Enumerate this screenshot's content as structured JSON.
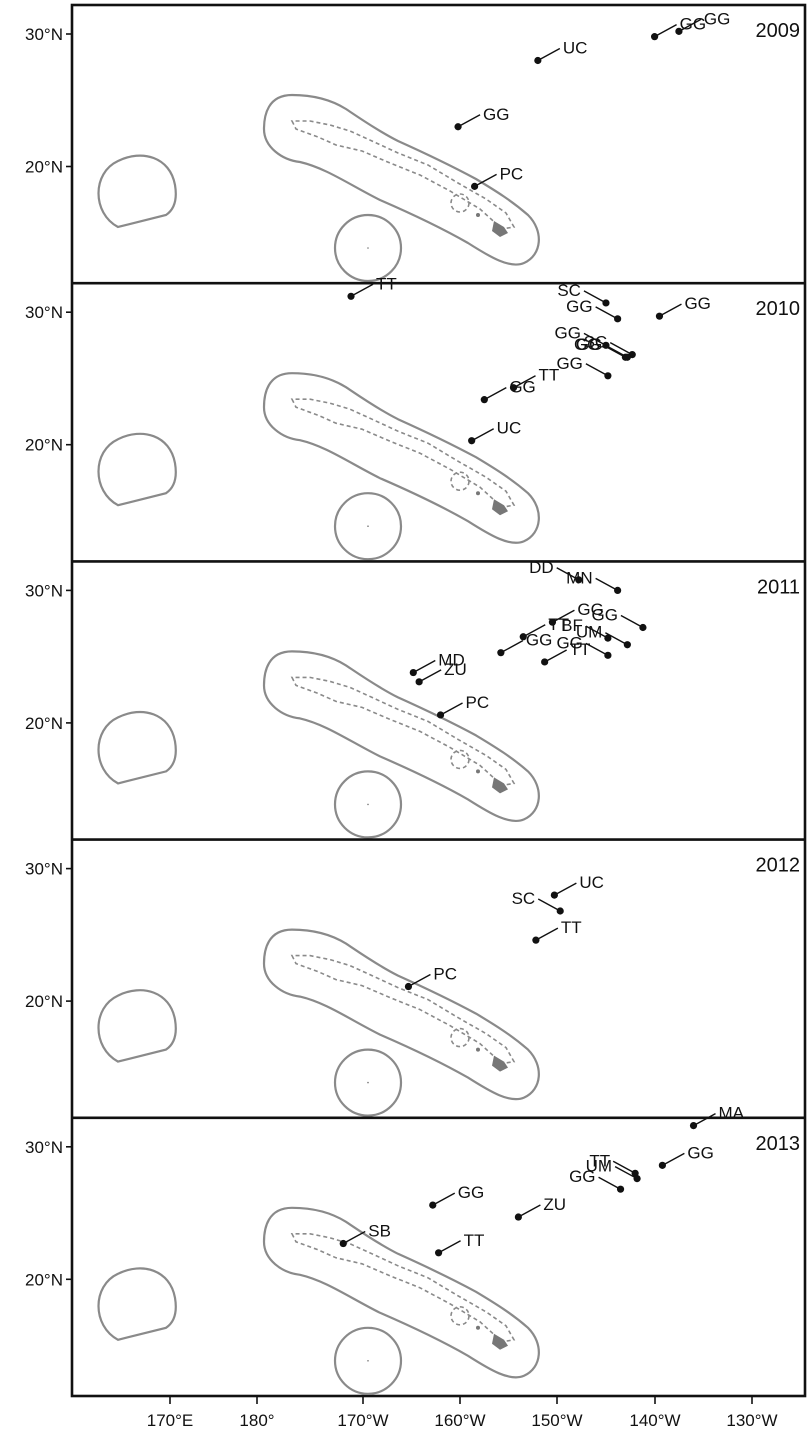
{
  "map": {
    "x_axis": {
      "tick_labels": [
        "170°E",
        "180°",
        "170°W",
        "160°W",
        "150°W",
        "140°W",
        "130°W"
      ]
    },
    "y_axis": {
      "tick_labels": [
        "30°N",
        "20°N"
      ]
    },
    "colors": {
      "frame": "#111111",
      "boundary": "#8a8a8a",
      "island": "#777777",
      "point": "#111111"
    },
    "panels": [
      {
        "year": "2009",
        "points": [
          {
            "label": "UC",
            "lon": -152,
            "lat": 28.0
          },
          {
            "label": "GG",
            "lon": -140,
            "lat": 29.8
          },
          {
            "label": "GG",
            "lon": -137.5,
            "lat": 30.2
          },
          {
            "label": "GG",
            "lon": -160.2,
            "lat": 23.0
          },
          {
            "label": "PC",
            "lon": -158.5,
            "lat": 18.5
          }
        ]
      },
      {
        "year": "2010",
        "points": [
          {
            "label": "TT",
            "lon": -171.2,
            "lat": 31.2
          },
          {
            "label": "SC",
            "lon": -145,
            "lat": 30.7
          },
          {
            "label": "GG",
            "lon": -143.8,
            "lat": 29.5
          },
          {
            "label": "GG",
            "lon": -139.5,
            "lat": 29.7
          },
          {
            "label": "GG",
            "lon": -145,
            "lat": 27.5
          },
          {
            "label": "GG",
            "lon": -143,
            "lat": 26.6
          },
          {
            "label": "SC",
            "lon": -142.3,
            "lat": 26.8
          },
          {
            "label": "GG",
            "lon": -142.8,
            "lat": 26.6
          },
          {
            "label": "GG",
            "lon": -144.8,
            "lat": 25.2
          },
          {
            "label": "GG",
            "lon": -157.5,
            "lat": 23.4
          },
          {
            "label": "TT",
            "lon": -154.5,
            "lat": 24.3
          },
          {
            "label": "UC",
            "lon": -158.8,
            "lat": 20.3
          }
        ]
      },
      {
        "year": "2011",
        "points": [
          {
            "label": "DD",
            "lon": -147.8,
            "lat": 30.8
          },
          {
            "label": "MN",
            "lon": -143.8,
            "lat": 30.0
          },
          {
            "label": "TT",
            "lon": -153.5,
            "lat": 26.5
          },
          {
            "label": "GG",
            "lon": -150.5,
            "lat": 27.6
          },
          {
            "label": "GG",
            "lon": -141.2,
            "lat": 27.2
          },
          {
            "label": "BF",
            "lon": -144.8,
            "lat": 26.4
          },
          {
            "label": "UM",
            "lon": -142.8,
            "lat": 25.9
          },
          {
            "label": "GG",
            "lon": -144.8,
            "lat": 25.1
          },
          {
            "label": "GG",
            "lon": -155.8,
            "lat": 25.3
          },
          {
            "label": "TT",
            "lon": -151.3,
            "lat": 24.6
          },
          {
            "label": "MD",
            "lon": -164.8,
            "lat": 23.8
          },
          {
            "label": "ZU",
            "lon": -164.2,
            "lat": 23.1
          },
          {
            "label": "PC",
            "lon": -162.0,
            "lat": 20.6
          }
        ]
      },
      {
        "year": "2012",
        "points": [
          {
            "label": "UC",
            "lon": -150.3,
            "lat": 28.0
          },
          {
            "label": "SC",
            "lon": -149.7,
            "lat": 26.8
          },
          {
            "label": "TT",
            "lon": -152.2,
            "lat": 24.6
          },
          {
            "label": "PC",
            "lon": -165.3,
            "lat": 21.1
          }
        ]
      },
      {
        "year": "2013",
        "points": [
          {
            "label": "MA",
            "lon": -136.0,
            "lat": 31.6
          },
          {
            "label": "TT",
            "lon": -142.0,
            "lat": 28.0
          },
          {
            "label": "UM",
            "lon": -141.8,
            "lat": 27.6
          },
          {
            "label": "GG",
            "lon": -139.2,
            "lat": 28.6
          },
          {
            "label": "GG",
            "lon": -143.5,
            "lat": 26.8
          },
          {
            "label": "GG",
            "lon": -162.8,
            "lat": 25.6
          },
          {
            "label": "ZU",
            "lon": -154.0,
            "lat": 24.7
          },
          {
            "label": "SB",
            "lon": -172.0,
            "lat": 22.7
          },
          {
            "label": "TT",
            "lon": -162.2,
            "lat": 22.0
          }
        ]
      }
    ]
  }
}
